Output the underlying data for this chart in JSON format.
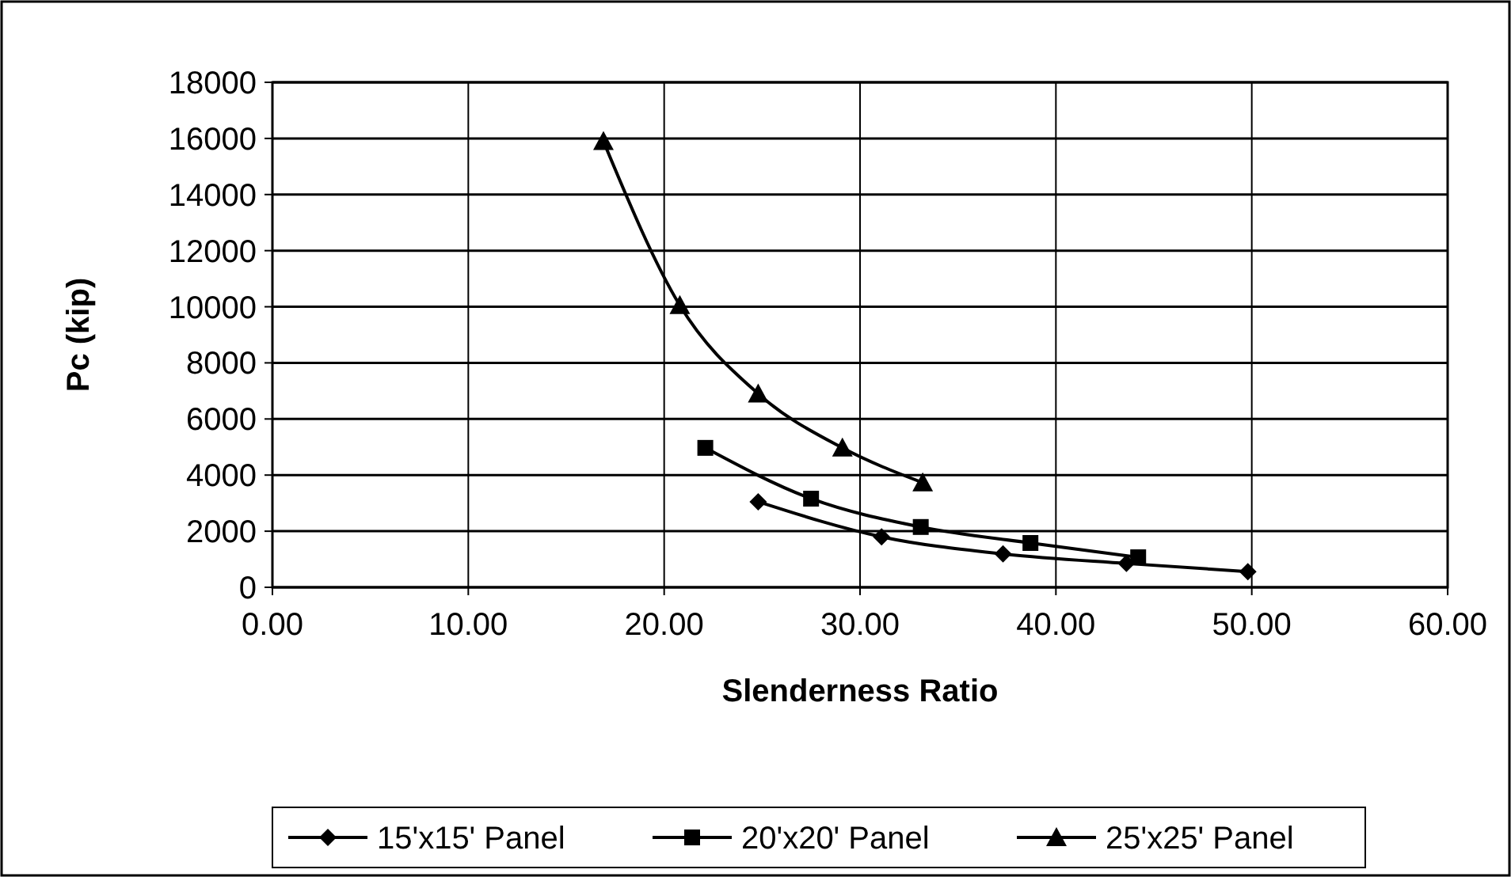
{
  "chart_data": {
    "type": "line",
    "xlabel": "Slenderness Ratio",
    "ylabel": "Pc (kip)",
    "xlim": [
      0,
      60
    ],
    "xticks": [
      {
        "value": 0,
        "label": "0.00"
      },
      {
        "value": 10,
        "label": "10.00"
      },
      {
        "value": 20,
        "label": "20.00"
      },
      {
        "value": 30,
        "label": "30.00"
      },
      {
        "value": 40,
        "label": "40.00"
      },
      {
        "value": 50,
        "label": "50.00"
      },
      {
        "value": 60,
        "label": "60.00"
      }
    ],
    "ylim": [
      0,
      18000
    ],
    "yticks": [
      0,
      2000,
      4000,
      6000,
      8000,
      10000,
      12000,
      14000,
      16000,
      18000
    ],
    "grid": true,
    "legend": "bottom",
    "line_style": "solid",
    "series": [
      {
        "name": "15'x15' Panel",
        "color": "#000000",
        "marker": "diamond",
        "x": [
          24.8,
          31.1,
          37.3,
          43.6,
          49.8
        ],
        "values": [
          3050,
          1800,
          1190,
          850,
          560
        ]
      },
      {
        "name": "20'x20' Panel",
        "color": "#000000",
        "marker": "square",
        "x": [
          22.1,
          27.5,
          33.1,
          38.7,
          44.2
        ],
        "values": [
          4970,
          3160,
          2150,
          1580,
          1070
        ]
      },
      {
        "name": "25'x25' Panel",
        "color": "#000000",
        "marker": "triangle",
        "x": [
          16.9,
          20.8,
          24.8,
          29.1,
          33.2
        ],
        "values": [
          15900,
          10050,
          6900,
          4970,
          3730
        ]
      }
    ]
  }
}
